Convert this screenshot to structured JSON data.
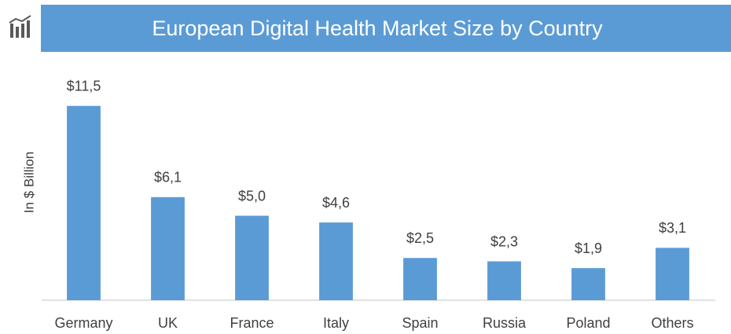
{
  "chart_data": {
    "type": "bar",
    "title": "European Digital Health Market Size by Country",
    "y_label": "In $ Billion",
    "categories": [
      "Germany",
      "UK",
      "France",
      "Italy",
      "Spain",
      "Russia",
      "Poland",
      "Others"
    ],
    "values": [
      11.5,
      6.1,
      5.0,
      4.6,
      2.5,
      2.3,
      1.9,
      3.1
    ],
    "value_labels": [
      "$11,5",
      "$6,1",
      "$5,0",
      "$4,6",
      "$2,5",
      "$2,3",
      "$1,9",
      "$3,1"
    ],
    "color": "#5b9bd5",
    "ylim": [
      0,
      12
    ]
  }
}
